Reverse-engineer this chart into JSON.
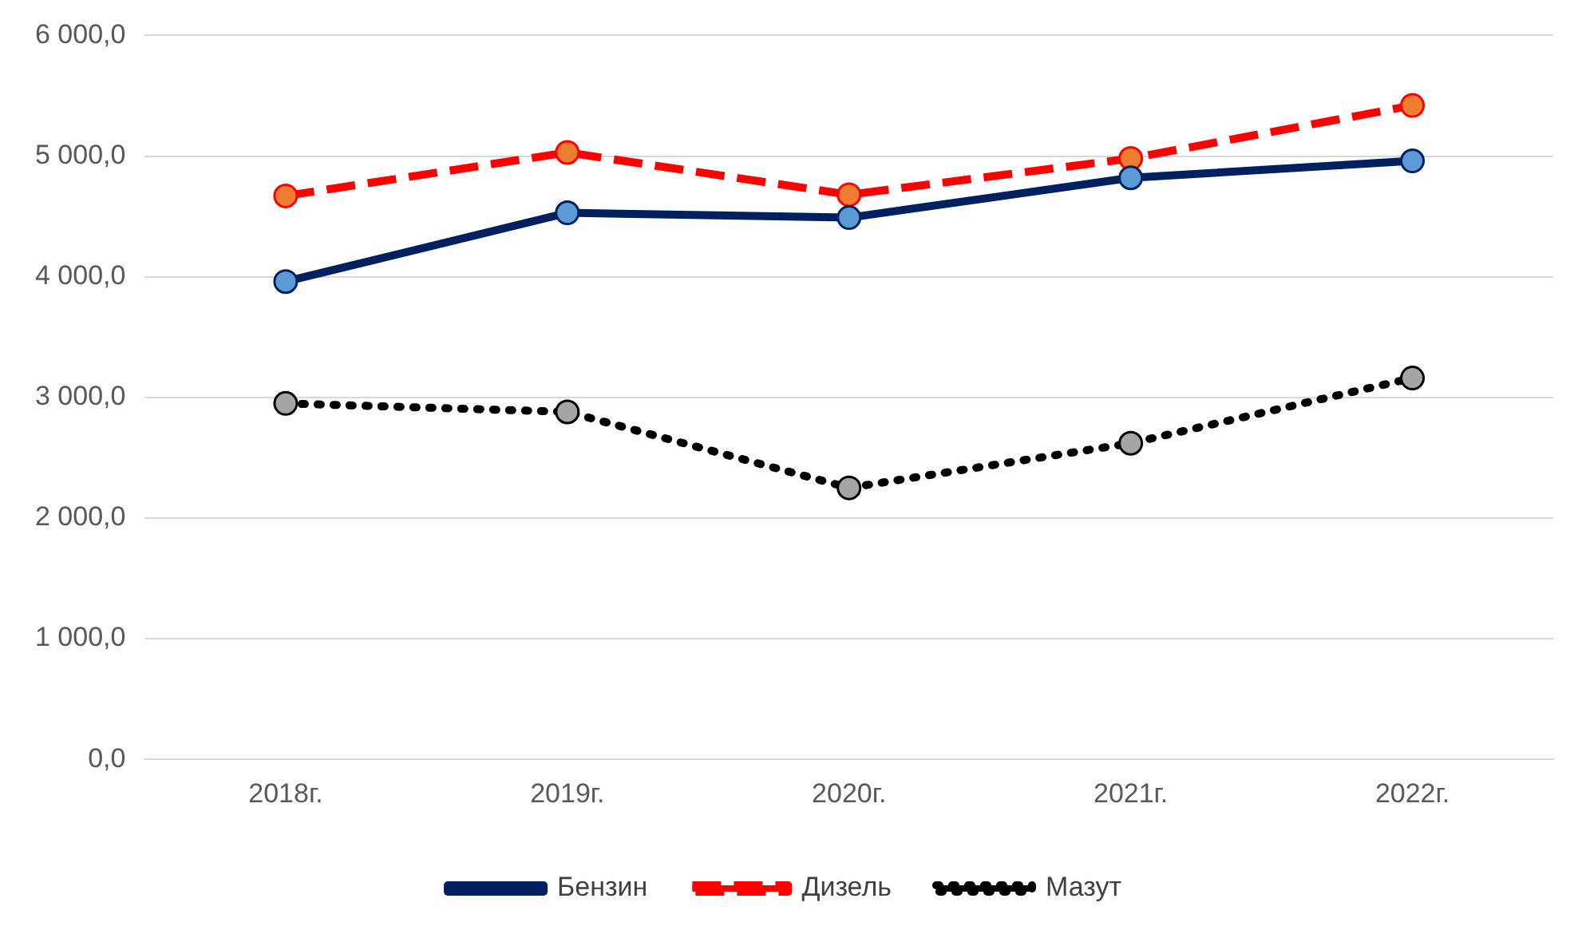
{
  "chart_data": {
    "type": "line",
    "categories": [
      "2018г.",
      "2019г.",
      "2020г.",
      "2021г.",
      "2022г."
    ],
    "series": [
      {
        "name": "Бензин",
        "color": "#002060",
        "colors": [
          "#5b9bd5",
          "#5b9bd5",
          "#5b9bd5",
          "#5b9bd5",
          "#5b9bd5"
        ],
        "line_style": "solid",
        "values": [
          3960,
          4530,
          4490,
          4820,
          4960
        ]
      },
      {
        "name": "Дизель",
        "color": "#ff0000",
        "colors": [
          "#ed7d31",
          "#ed7d31",
          "#ed7d31",
          "#ed7d31",
          "#ed7d31"
        ],
        "line_style": "dashed",
        "values": [
          4670,
          5030,
          4680,
          4980,
          5420
        ]
      },
      {
        "name": "Мазут",
        "color": "#000000",
        "colors": [
          "#a5a5a5",
          "#a5a5a5",
          "#a5a5a5",
          "#a5a5a5",
          "#a5a5a5"
        ],
        "line_style": "dotted",
        "values": [
          2950,
          2880,
          2250,
          2620,
          3160
        ]
      }
    ],
    "ylim": [
      0,
      6000
    ],
    "yticks": [
      {
        "value": 0,
        "label": "0,0"
      },
      {
        "value": 1000,
        "label": "1 000,0"
      },
      {
        "value": 2000,
        "label": "2 000,0"
      },
      {
        "value": 3000,
        "label": "3 000,0"
      },
      {
        "value": 4000,
        "label": "4 000,0"
      },
      {
        "value": 5000,
        "label": "5 000,0"
      },
      {
        "value": 6000,
        "label": "6 000,0"
      }
    ],
    "grid": "y",
    "legend": "bottom",
    "marker": "circle"
  }
}
